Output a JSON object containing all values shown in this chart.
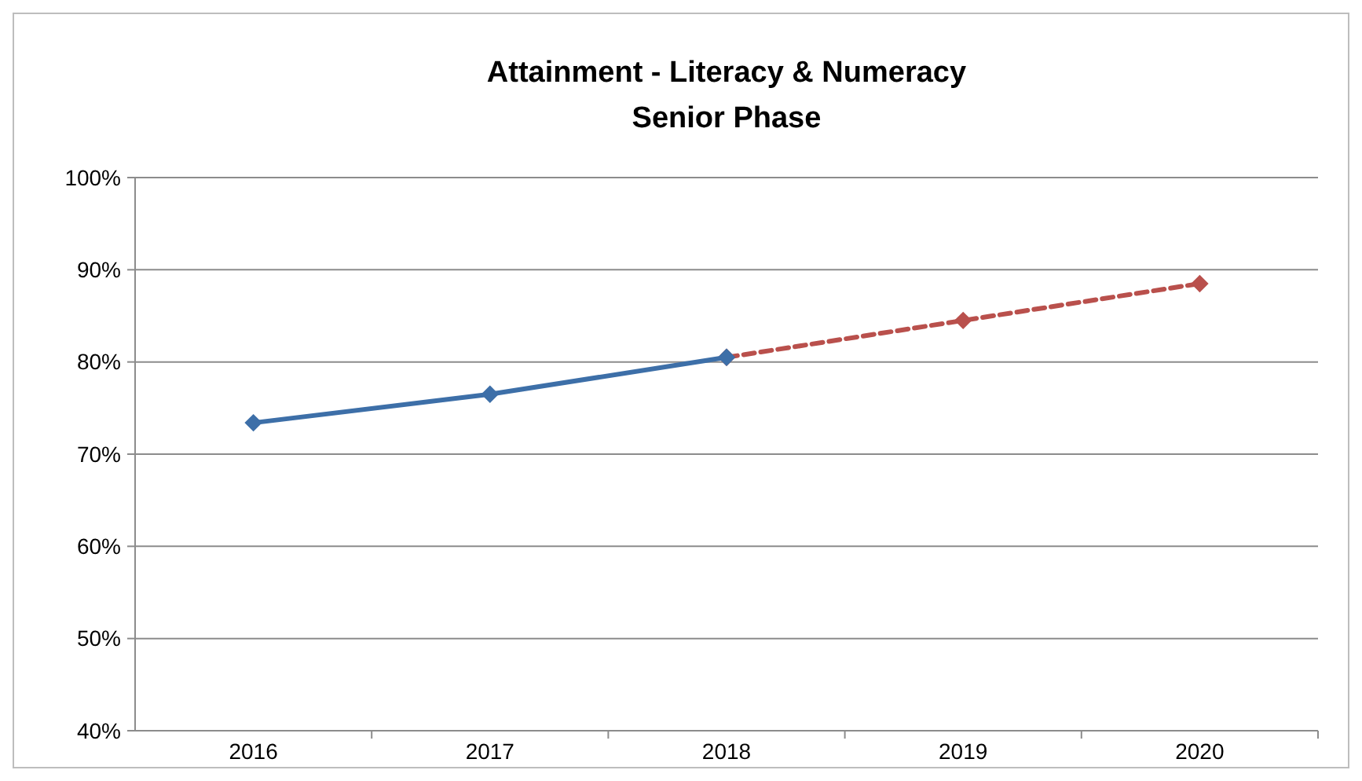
{
  "chart_data": {
    "type": "line",
    "title": "Attainment - Literacy & Numeracy",
    "subtitle": "Senior Phase",
    "categories": [
      "2016",
      "2017",
      "2018",
      "2019",
      "2020"
    ],
    "series": [
      {
        "color": "#b9504c",
        "values": [
          null,
          null,
          80.5,
          84.5,
          88.5
        ],
        "line_style": "dashed"
      },
      {
        "color": "#3d6fa8",
        "values": [
          73.4,
          76.5,
          80.5,
          null,
          null
        ],
        "line_style": "solid"
      }
    ],
    "ylim": [
      40,
      100
    ],
    "yticks": [
      {
        "value": 40,
        "label": "40%"
      },
      {
        "value": 50,
        "label": "50%"
      },
      {
        "value": 60,
        "label": "60%"
      },
      {
        "value": 70,
        "label": "70%"
      },
      {
        "value": 80,
        "label": "80%"
      },
      {
        "value": 90,
        "label": "90%"
      },
      {
        "value": 100,
        "label": "100%"
      }
    ],
    "grid": "y",
    "marker": "diamond"
  }
}
